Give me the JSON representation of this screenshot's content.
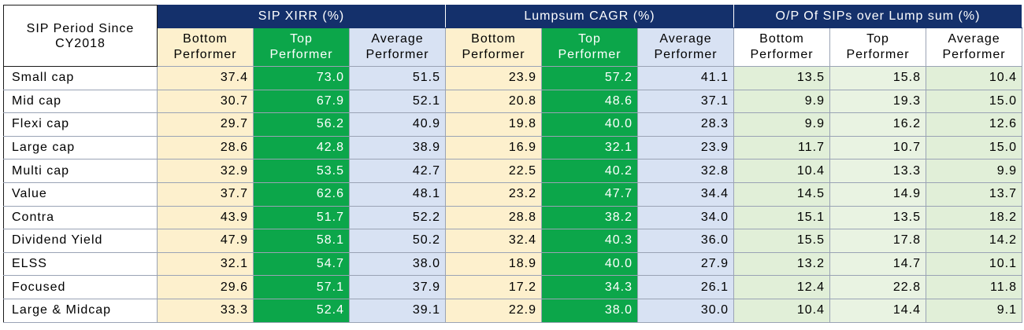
{
  "chart_data": {
    "type": "table",
    "corner_header": "SIP Period Since CY2018",
    "groups": [
      {
        "label": "SIP XIRR (%)",
        "span": 3
      },
      {
        "label": "Lumpsum CAGR (%)",
        "span": 3
      },
      {
        "label": "O/P Of SIPs over Lump sum (%)",
        "span": 3
      }
    ],
    "subheaders": [
      "Bottom Performer",
      "Top Performer",
      "Average Performer",
      "Bottom Performer",
      "Top Performer",
      "Average Performer",
      "Bottom Performer",
      "Top Performer",
      "Average Performer"
    ],
    "rows": [
      {
        "label": "Small cap",
        "values": [
          "37.4",
          "73.0",
          "51.5",
          "23.9",
          "57.2",
          "41.1",
          "13.5",
          "15.8",
          "10.4"
        ]
      },
      {
        "label": "Mid cap",
        "values": [
          "30.7",
          "67.9",
          "52.1",
          "20.8",
          "48.6",
          "37.1",
          "9.9",
          "19.3",
          "15.0"
        ]
      },
      {
        "label": "Flexi cap",
        "values": [
          "29.7",
          "56.2",
          "40.9",
          "19.8",
          "40.0",
          "28.3",
          "9.9",
          "16.2",
          "12.6"
        ]
      },
      {
        "label": "Large cap",
        "values": [
          "28.6",
          "42.8",
          "38.9",
          "16.9",
          "32.1",
          "23.9",
          "11.7",
          "10.7",
          "15.0"
        ]
      },
      {
        "label": "Multi cap",
        "values": [
          "32.9",
          "53.5",
          "42.7",
          "22.5",
          "40.2",
          "32.8",
          "10.4",
          "13.3",
          "9.9"
        ]
      },
      {
        "label": "Value",
        "values": [
          "37.7",
          "62.6",
          "48.1",
          "23.2",
          "47.7",
          "34.4",
          "14.5",
          "14.9",
          "13.7"
        ]
      },
      {
        "label": "Contra",
        "values": [
          "43.9",
          "51.7",
          "52.2",
          "28.8",
          "38.2",
          "34.0",
          "15.1",
          "13.5",
          "18.2"
        ]
      },
      {
        "label": "Dividend Yield",
        "values": [
          "47.9",
          "58.1",
          "50.2",
          "32.4",
          "40.3",
          "36.0",
          "15.5",
          "17.8",
          "14.2"
        ]
      },
      {
        "label": "ELSS",
        "values": [
          "32.1",
          "54.7",
          "38.0",
          "18.9",
          "40.0",
          "27.9",
          "13.2",
          "14.7",
          "10.1"
        ]
      },
      {
        "label": "Focused",
        "values": [
          "29.6",
          "57.1",
          "37.9",
          "17.2",
          "34.3",
          "26.1",
          "12.4",
          "22.8",
          "11.8"
        ]
      },
      {
        "label": "Large & Midcap",
        "values": [
          "33.3",
          "52.4",
          "39.1",
          "22.9",
          "38.0",
          "30.0",
          "10.4",
          "14.4",
          "9.1"
        ]
      }
    ],
    "colors": {
      "header_bg": "#14306b",
      "header_text": "#ffffff",
      "bottom_performer": "#fdf0cd",
      "top_performer": "#0ca64a",
      "average_performer": "#d8e2f3",
      "outperformance": "#e1efd8"
    }
  }
}
